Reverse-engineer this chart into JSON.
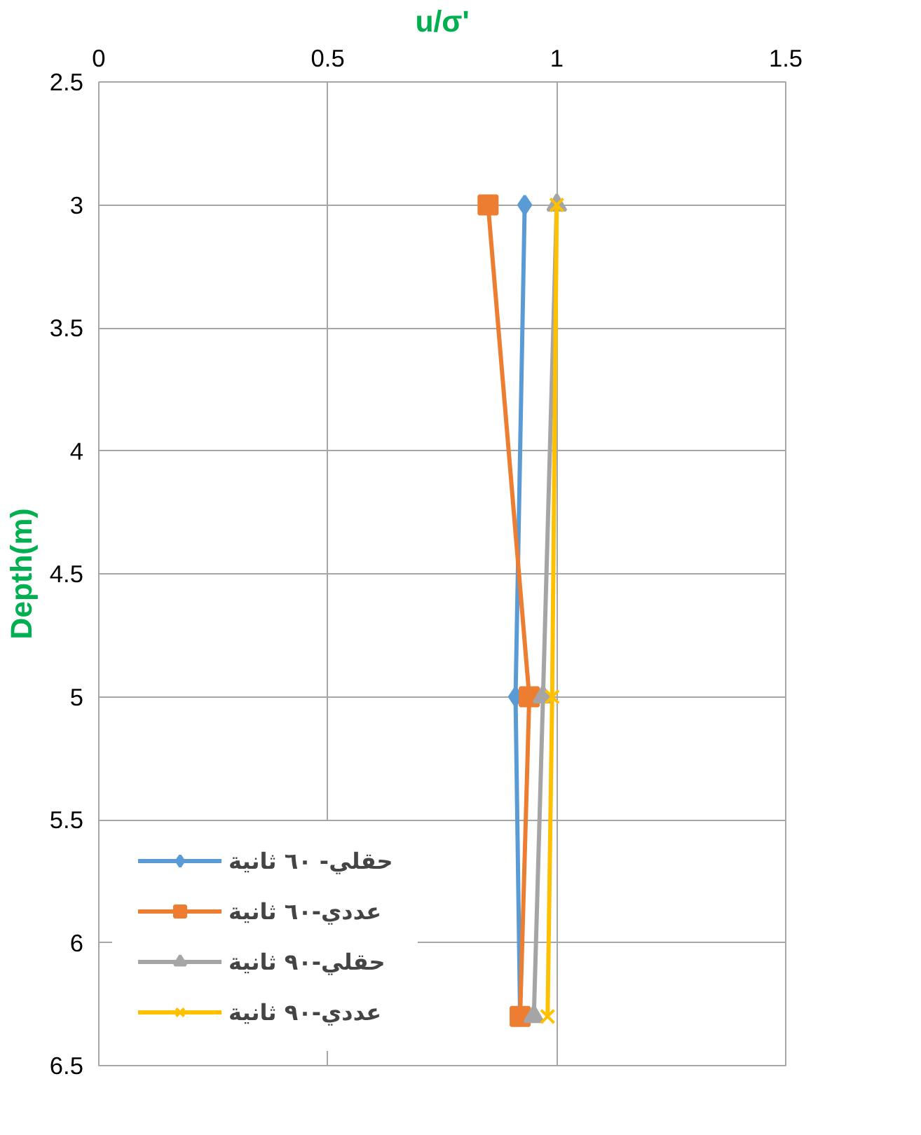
{
  "chart_data": {
    "type": "line",
    "xlabel": "u/σ'",
    "ylabel": "Depth(m)",
    "xlim": [
      0,
      1.5
    ],
    "xticks": [
      0,
      0.5,
      1,
      1.5
    ],
    "ylim": [
      6.5,
      2.5
    ],
    "yticks": [
      2.5,
      3,
      3.5,
      4,
      4.5,
      5,
      5.5,
      6,
      6.5
    ],
    "grid": true,
    "legend": "bottom left",
    "line_style": "solid",
    "series": [
      {
        "name": "حقلي- ٦٠ ثانية",
        "color": "#5b9bd5",
        "marker": "diamond",
        "x": [
          0.93,
          0.91,
          0.92
        ],
        "values": [
          3,
          5,
          6.3
        ]
      },
      {
        "name": "عددي-٦٠ ثانية",
        "color": "#ed7d31",
        "marker": "square",
        "x": [
          0.85,
          0.94,
          0.92
        ],
        "values": [
          3,
          5,
          6.3
        ]
      },
      {
        "name": "حقلي-٩٠ ثانية",
        "color": "#a5a5a5",
        "marker": "triangle",
        "x": [
          1.0,
          0.97,
          0.95
        ],
        "values": [
          3,
          5,
          6.3
        ]
      },
      {
        "name": "عددي-٩٠ ثانية",
        "color": "#ffc000",
        "marker": "x",
        "x": [
          1.0,
          0.99,
          0.98
        ],
        "values": [
          3,
          5,
          6.3
        ]
      }
    ]
  }
}
